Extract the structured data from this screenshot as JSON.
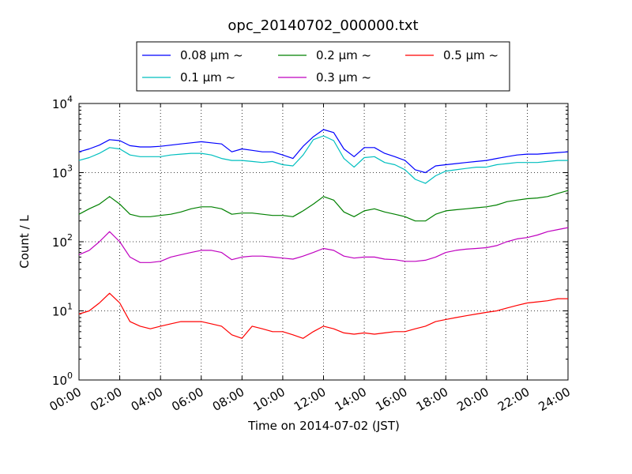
{
  "chart_data": {
    "type": "line",
    "title": "opc_20140702_000000.txt",
    "xlabel": "Time on 2014-07-02 (JST)",
    "ylabel": "Count / L",
    "x_unit": "hours",
    "xlim": [
      0,
      24
    ],
    "ylim": [
      1,
      10000
    ],
    "yscale": "log",
    "grid": true,
    "legend_position": "top-center, above plot",
    "x_tick_labels": [
      "00:00",
      "02:00",
      "04:00",
      "06:00",
      "08:00",
      "10:00",
      "12:00",
      "14:00",
      "16:00",
      "18:00",
      "20:00",
      "22:00",
      "24:00"
    ],
    "y_ticks": [
      {
        "base": "10",
        "exp": "0"
      },
      {
        "base": "10",
        "exp": "1"
      },
      {
        "base": "10",
        "exp": "2"
      },
      {
        "base": "10",
        "exp": "3"
      },
      {
        "base": "10",
        "exp": "4"
      }
    ],
    "x": [
      0,
      0.5,
      1,
      1.5,
      2,
      2.5,
      3,
      3.5,
      4,
      4.5,
      5,
      5.5,
      6,
      6.5,
      7,
      7.5,
      8,
      8.5,
      9,
      9.5,
      10,
      10.5,
      11,
      11.5,
      12,
      12.5,
      13,
      13.5,
      14,
      14.5,
      15,
      15.5,
      16,
      16.5,
      17,
      17.5,
      18,
      18.5,
      19,
      19.5,
      20,
      20.5,
      21,
      21.5,
      22,
      22.5,
      23,
      23.5,
      24
    ],
    "series": [
      {
        "name": "0.08 μm ~",
        "color": "#0000ff",
        "values": [
          2000,
          2200,
          2500,
          3000,
          2900,
          2450,
          2350,
          2350,
          2400,
          2500,
          2600,
          2700,
          2800,
          2700,
          2600,
          2000,
          2200,
          2100,
          2000,
          2000,
          1800,
          1600,
          2400,
          3300,
          4200,
          3800,
          2200,
          1700,
          2300,
          2300,
          1900,
          1700,
          1500,
          1100,
          1000,
          1250,
          1300,
          1350,
          1400,
          1450,
          1500,
          1600,
          1700,
          1800,
          1850,
          1850,
          1900,
          1950,
          2000
        ]
      },
      {
        "name": "0.1 μm ~",
        "color": "#00bfbf",
        "values": [
          1500,
          1650,
          1900,
          2300,
          2200,
          1800,
          1700,
          1700,
          1700,
          1800,
          1850,
          1900,
          1900,
          1800,
          1600,
          1500,
          1500,
          1450,
          1400,
          1450,
          1300,
          1250,
          1800,
          3000,
          3400,
          2900,
          1600,
          1200,
          1650,
          1700,
          1400,
          1300,
          1100,
          800,
          700,
          900,
          1050,
          1100,
          1150,
          1200,
          1200,
          1300,
          1350,
          1400,
          1400,
          1400,
          1450,
          1500,
          1500
        ]
      },
      {
        "name": "0.2 μm ~",
        "color": "#008000",
        "values": [
          250,
          300,
          350,
          450,
          350,
          250,
          230,
          230,
          240,
          250,
          270,
          300,
          320,
          320,
          300,
          250,
          260,
          260,
          250,
          240,
          240,
          230,
          280,
          350,
          450,
          400,
          270,
          230,
          280,
          300,
          270,
          250,
          230,
          200,
          200,
          250,
          280,
          290,
          300,
          310,
          320,
          340,
          380,
          400,
          420,
          430,
          450,
          500,
          550
        ]
      },
      {
        "name": "0.3 μm ~",
        "color": "#bf00bf",
        "values": [
          65,
          75,
          100,
          140,
          100,
          60,
          50,
          50,
          52,
          60,
          65,
          70,
          75,
          75,
          70,
          55,
          60,
          62,
          62,
          60,
          58,
          56,
          62,
          70,
          80,
          75,
          62,
          58,
          60,
          60,
          56,
          55,
          52,
          52,
          54,
          60,
          70,
          75,
          78,
          80,
          82,
          88,
          100,
          110,
          115,
          125,
          140,
          150,
          160
        ]
      },
      {
        "name": "0.5 μm ~",
        "color": "#ff0000",
        "values": [
          9,
          10,
          13,
          18,
          13,
          7,
          6,
          5.5,
          6,
          6.5,
          7,
          7,
          7,
          6.5,
          6,
          4.5,
          4,
          6,
          5.5,
          5,
          5,
          4.5,
          4,
          5,
          6,
          5.5,
          4.8,
          4.6,
          4.8,
          4.6,
          4.8,
          5,
          5,
          5.5,
          6,
          7,
          7.5,
          8,
          8.5,
          9,
          9.5,
          10,
          11,
          12,
          13,
          13.5,
          14,
          15,
          15
        ]
      }
    ]
  }
}
